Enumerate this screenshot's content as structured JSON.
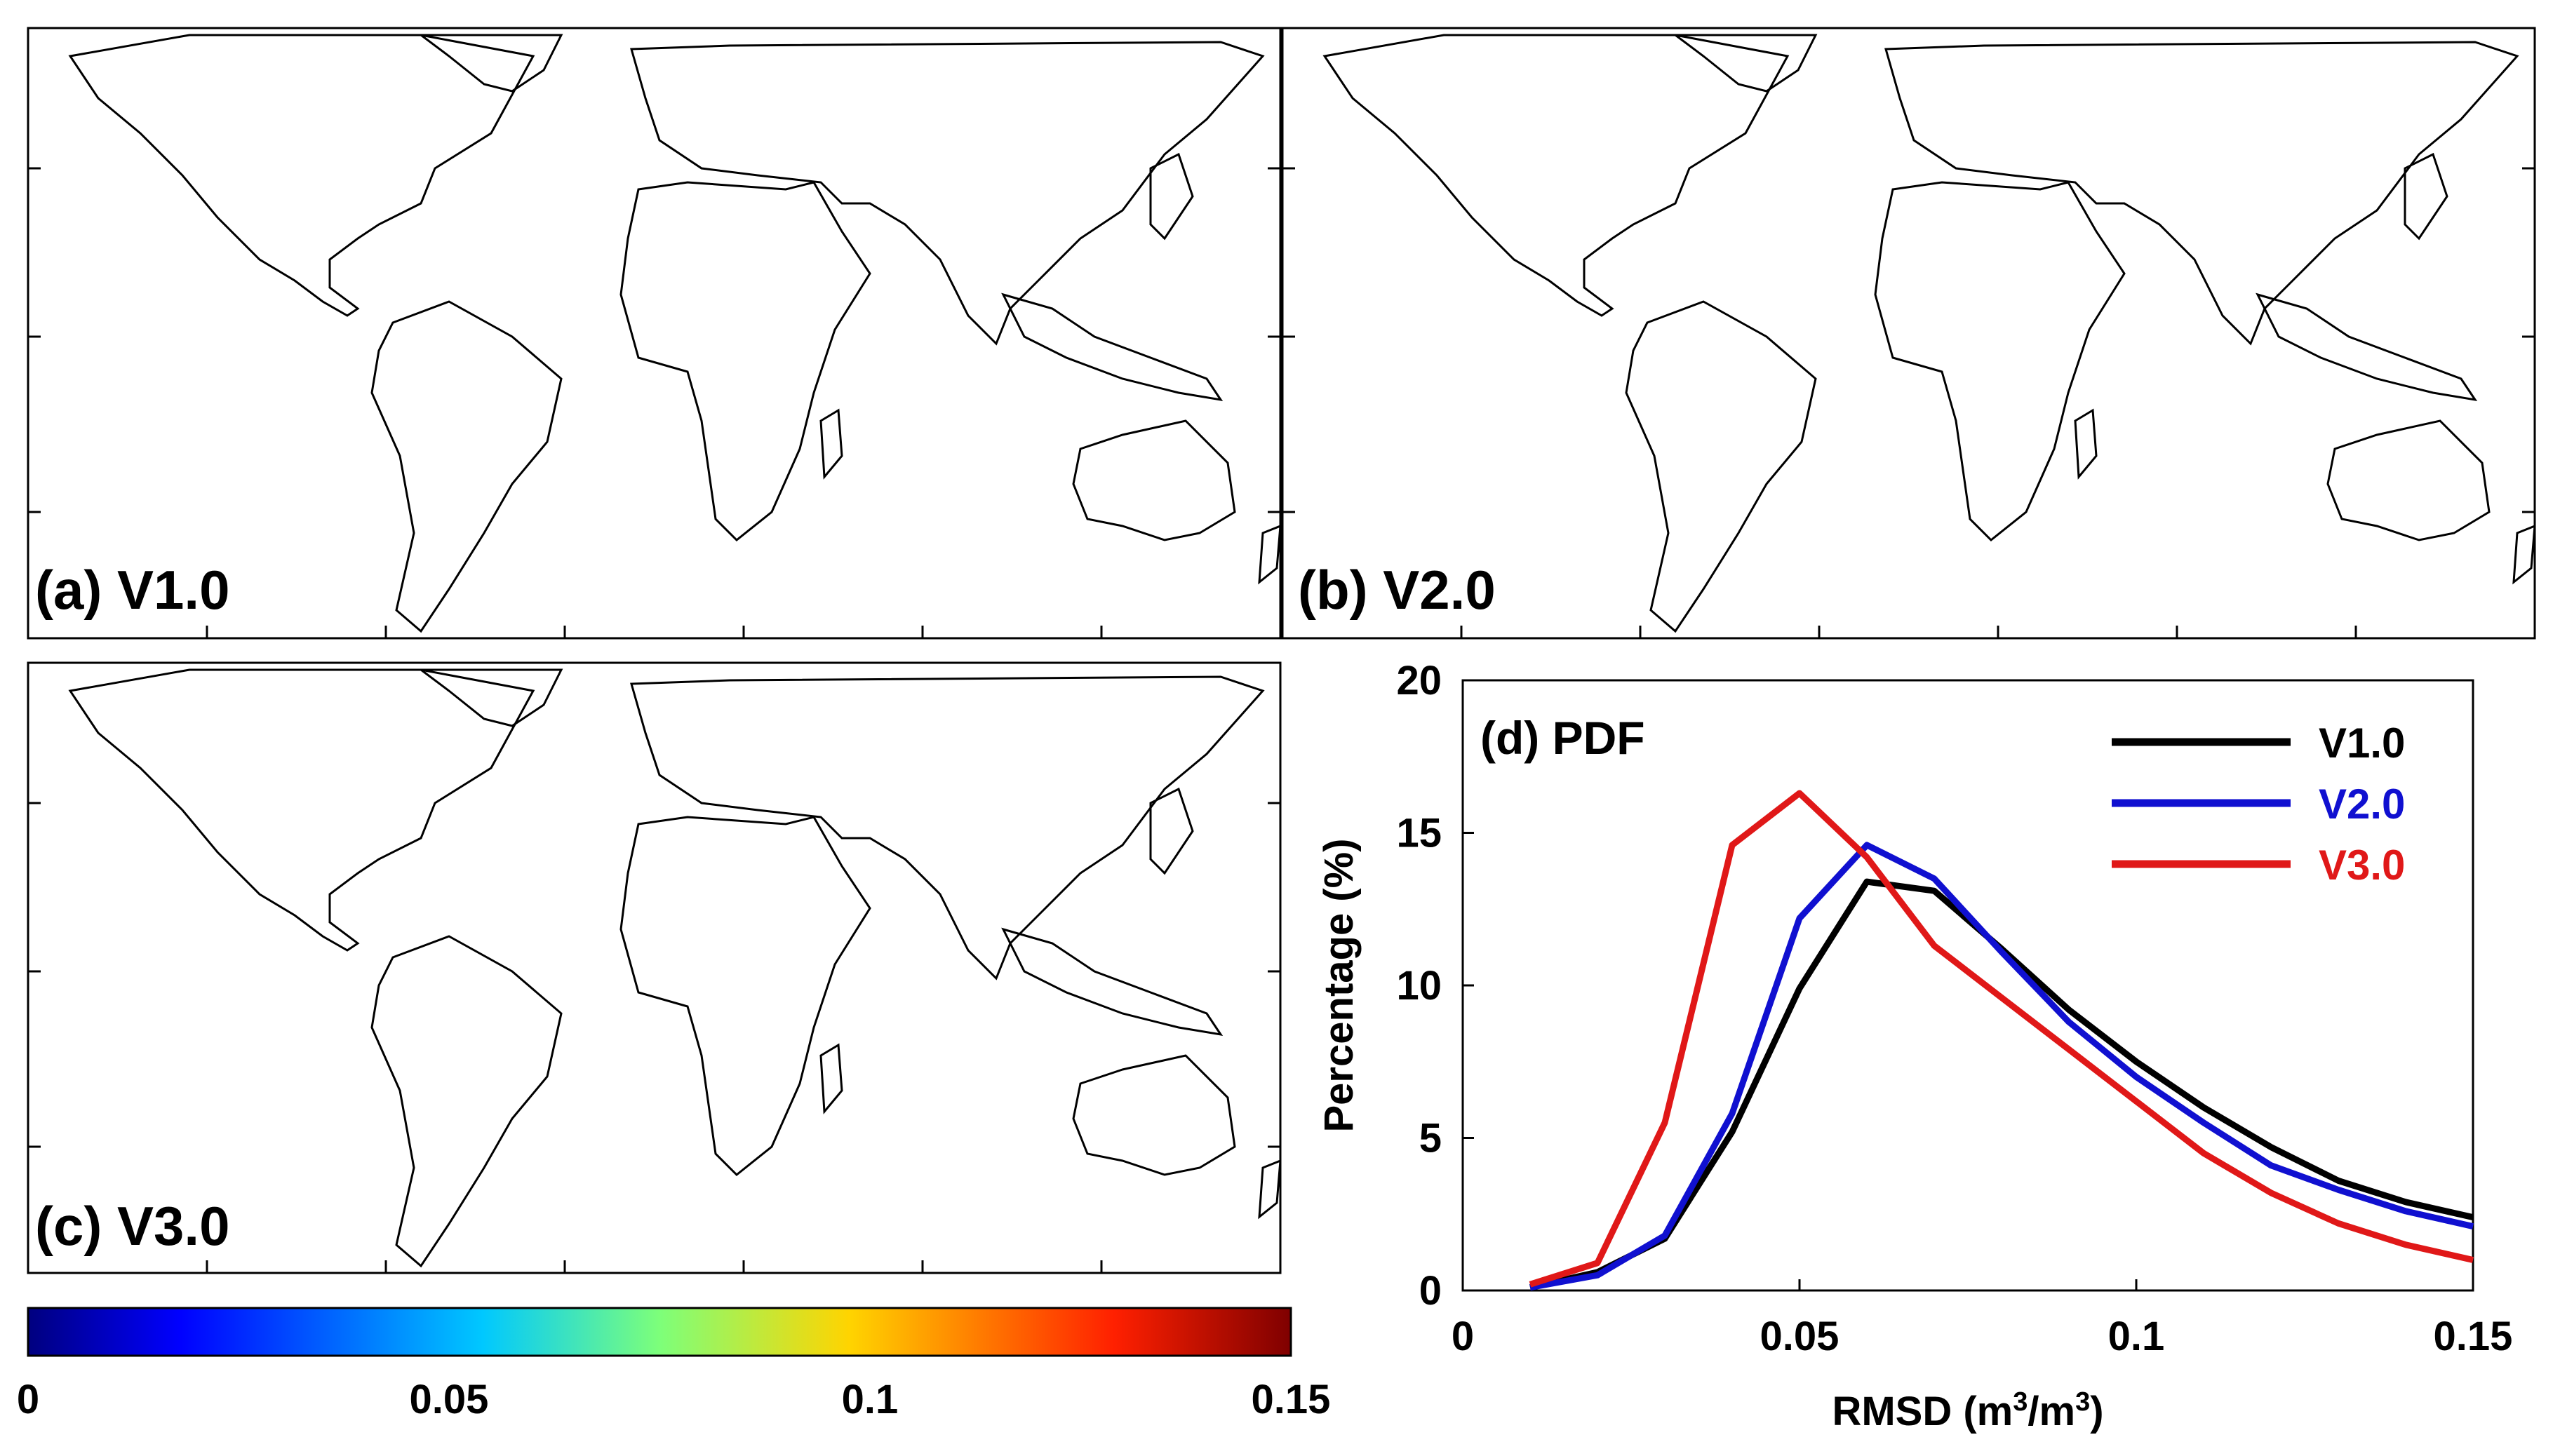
{
  "maps": [
    {
      "label": "(a) V1.0"
    },
    {
      "label": "(b) V2.0"
    },
    {
      "label": "(c) V3.0"
    }
  ],
  "colorbar": {
    "ticks": [
      "0",
      "0.05",
      "0.1",
      "0.15"
    ],
    "tick_values": [
      0,
      0.05,
      0.1,
      0.15
    ],
    "range": [
      0,
      0.15
    ],
    "colormap": "jet"
  },
  "chart_data": {
    "type": "line",
    "panel_label": "(d) PDF",
    "xlabel": "RMSD (m3/m3)",
    "xlabel_parts": {
      "prefix": "RMSD (m",
      "sup1": "3",
      "mid": "/m",
      "sup2": "3",
      "suffix": ")"
    },
    "ylabel": "Percentage (%)",
    "xlim": [
      0,
      0.15
    ],
    "ylim": [
      0,
      20
    ],
    "xticks": [
      0,
      0.05,
      0.1,
      0.15
    ],
    "xtick_labels": [
      "0",
      "0.05",
      "0.1",
      "0.15"
    ],
    "yticks": [
      0,
      5,
      10,
      15,
      20
    ],
    "ytick_labels": [
      "0",
      "5",
      "10",
      "15",
      "20"
    ],
    "legend_position": "top-right",
    "x": [
      0.01,
      0.02,
      0.03,
      0.04,
      0.05,
      0.06,
      0.07,
      0.08,
      0.09,
      0.1,
      0.11,
      0.12,
      0.13,
      0.14,
      0.15
    ],
    "series": [
      {
        "name": "V1.0",
        "color": "#000000",
        "values": [
          0.1,
          0.6,
          1.7,
          5.2,
          9.9,
          13.4,
          13.1,
          11.2,
          9.2,
          7.5,
          6.0,
          4.7,
          3.6,
          2.9,
          2.4
        ]
      },
      {
        "name": "V2.0",
        "color": "#1010d0",
        "values": [
          0.1,
          0.5,
          1.8,
          5.8,
          12.2,
          14.6,
          13.5,
          11.1,
          8.8,
          7.0,
          5.5,
          4.1,
          3.3,
          2.6,
          2.1
        ]
      },
      {
        "name": "V3.0",
        "color": "#e01818",
        "values": [
          0.2,
          0.9,
          5.5,
          14.6,
          16.3,
          14.2,
          11.3,
          9.6,
          7.9,
          6.2,
          4.5,
          3.2,
          2.2,
          1.5,
          1.0
        ]
      }
    ]
  }
}
